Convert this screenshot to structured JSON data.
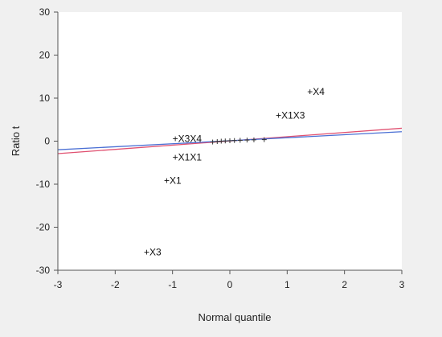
{
  "chart_data": {
    "type": "scatter",
    "xlabel": "Normal quantile",
    "ylabel": "Ratio t",
    "xlim": [
      -3,
      3
    ],
    "ylim": [
      -30,
      30
    ],
    "x_ticks": [
      -3,
      -2,
      -1,
      0,
      1,
      2,
      3
    ],
    "y_ticks": [
      -30,
      -20,
      -10,
      0,
      10,
      20,
      30
    ],
    "grid": false,
    "labeled_points": [
      {
        "label": "+X4",
        "x": 1.35,
        "y": 11.5
      },
      {
        "label": "+X1X3",
        "x": 0.8,
        "y": 6
      },
      {
        "label": "+X3X4",
        "x": -1.0,
        "y": 0.6
      },
      {
        "label": "+X1X1",
        "x": -1.0,
        "y": -3.7
      },
      {
        "label": "+X1",
        "x": -1.15,
        "y": -9.2
      },
      {
        "label": "+X3",
        "x": -1.5,
        "y": -25.8
      }
    ],
    "unlabeled_points": [
      {
        "x": -0.3,
        "y": -0.2
      },
      {
        "x": -0.22,
        "y": -0.1
      },
      {
        "x": -0.15,
        "y": 0.0
      },
      {
        "x": -0.08,
        "y": 0.05
      },
      {
        "x": 0.0,
        "y": 0.1
      },
      {
        "x": 0.08,
        "y": 0.15
      },
      {
        "x": 0.18,
        "y": 0.2
      },
      {
        "x": 0.3,
        "y": 0.25
      },
      {
        "x": 0.42,
        "y": 0.3
      },
      {
        "x": 0.6,
        "y": 0.35
      }
    ],
    "lines": [
      {
        "color": "#e05070",
        "x": [
          -3,
          3
        ],
        "y": [
          -2.9,
          3.0
        ]
      },
      {
        "color": "#4a6fd4",
        "x": [
          -3,
          3
        ],
        "y": [
          -2.0,
          2.2
        ]
      }
    ]
  }
}
